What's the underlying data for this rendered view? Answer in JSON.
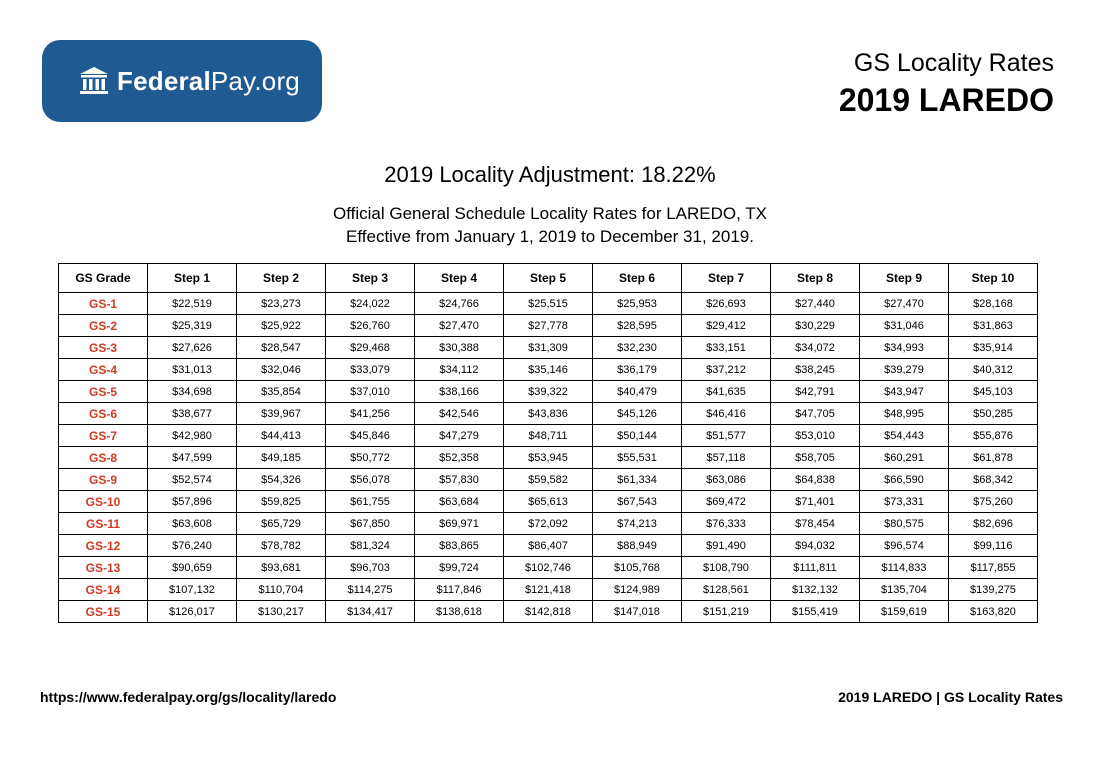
{
  "logo": {
    "brand_bold": "Federal",
    "brand_regular": "Pay.org"
  },
  "header": {
    "subtitle": "GS Locality Rates",
    "title": "2019 LAREDO"
  },
  "adjustment": "2019 Locality Adjustment: 18.22%",
  "description": {
    "line1": "Official General Schedule Locality Rates for LAREDO, TX",
    "line2": "Effective from January 1, 2019 to December 31, 2019."
  },
  "table": {
    "headers": [
      "GS Grade",
      "Step 1",
      "Step 2",
      "Step 3",
      "Step 4",
      "Step 5",
      "Step 6",
      "Step 7",
      "Step 8",
      "Step 9",
      "Step 10"
    ],
    "rows": [
      {
        "grade": "GS-1",
        "steps": [
          "$22,519",
          "$23,273",
          "$24,022",
          "$24,766",
          "$25,515",
          "$25,953",
          "$26,693",
          "$27,440",
          "$27,470",
          "$28,168"
        ]
      },
      {
        "grade": "GS-2",
        "steps": [
          "$25,319",
          "$25,922",
          "$26,760",
          "$27,470",
          "$27,778",
          "$28,595",
          "$29,412",
          "$30,229",
          "$31,046",
          "$31,863"
        ]
      },
      {
        "grade": "GS-3",
        "steps": [
          "$27,626",
          "$28,547",
          "$29,468",
          "$30,388",
          "$31,309",
          "$32,230",
          "$33,151",
          "$34,072",
          "$34,993",
          "$35,914"
        ]
      },
      {
        "grade": "GS-4",
        "steps": [
          "$31,013",
          "$32,046",
          "$33,079",
          "$34,112",
          "$35,146",
          "$36,179",
          "$37,212",
          "$38,245",
          "$39,279",
          "$40,312"
        ]
      },
      {
        "grade": "GS-5",
        "steps": [
          "$34,698",
          "$35,854",
          "$37,010",
          "$38,166",
          "$39,322",
          "$40,479",
          "$41,635",
          "$42,791",
          "$43,947",
          "$45,103"
        ]
      },
      {
        "grade": "GS-6",
        "steps": [
          "$38,677",
          "$39,967",
          "$41,256",
          "$42,546",
          "$43,836",
          "$45,126",
          "$46,416",
          "$47,705",
          "$48,995",
          "$50,285"
        ]
      },
      {
        "grade": "GS-7",
        "steps": [
          "$42,980",
          "$44,413",
          "$45,846",
          "$47,279",
          "$48,711",
          "$50,144",
          "$51,577",
          "$53,010",
          "$54,443",
          "$55,876"
        ]
      },
      {
        "grade": "GS-8",
        "steps": [
          "$47,599",
          "$49,185",
          "$50,772",
          "$52,358",
          "$53,945",
          "$55,531",
          "$57,118",
          "$58,705",
          "$60,291",
          "$61,878"
        ]
      },
      {
        "grade": "GS-9",
        "steps": [
          "$52,574",
          "$54,326",
          "$56,078",
          "$57,830",
          "$59,582",
          "$61,334",
          "$63,086",
          "$64,838",
          "$66,590",
          "$68,342"
        ]
      },
      {
        "grade": "GS-10",
        "steps": [
          "$57,896",
          "$59,825",
          "$61,755",
          "$63,684",
          "$65,613",
          "$67,543",
          "$69,472",
          "$71,401",
          "$73,331",
          "$75,260"
        ]
      },
      {
        "grade": "GS-11",
        "steps": [
          "$63,608",
          "$65,729",
          "$67,850",
          "$69,971",
          "$72,092",
          "$74,213",
          "$76,333",
          "$78,454",
          "$80,575",
          "$82,696"
        ]
      },
      {
        "grade": "GS-12",
        "steps": [
          "$76,240",
          "$78,782",
          "$81,324",
          "$83,865",
          "$86,407",
          "$88,949",
          "$91,490",
          "$94,032",
          "$96,574",
          "$99,116"
        ]
      },
      {
        "grade": "GS-13",
        "steps": [
          "$90,659",
          "$93,681",
          "$96,703",
          "$99,724",
          "$102,746",
          "$105,768",
          "$108,790",
          "$111,811",
          "$114,833",
          "$117,855"
        ]
      },
      {
        "grade": "GS-14",
        "steps": [
          "$107,132",
          "$110,704",
          "$114,275",
          "$117,846",
          "$121,418",
          "$124,989",
          "$128,561",
          "$132,132",
          "$135,704",
          "$139,275"
        ]
      },
      {
        "grade": "GS-15",
        "steps": [
          "$126,017",
          "$130,217",
          "$134,417",
          "$138,618",
          "$142,818",
          "$147,018",
          "$151,219",
          "$155,419",
          "$159,619",
          "$163,820"
        ]
      }
    ]
  },
  "footer": {
    "url": "https://www.federalpay.org/gs/locality/laredo",
    "right": "2019 LAREDO | GS Locality Rates"
  },
  "colors": {
    "brand": "#1f5a92",
    "grade": "#d03a22"
  },
  "icons": {
    "logo": "building-columns-icon"
  }
}
